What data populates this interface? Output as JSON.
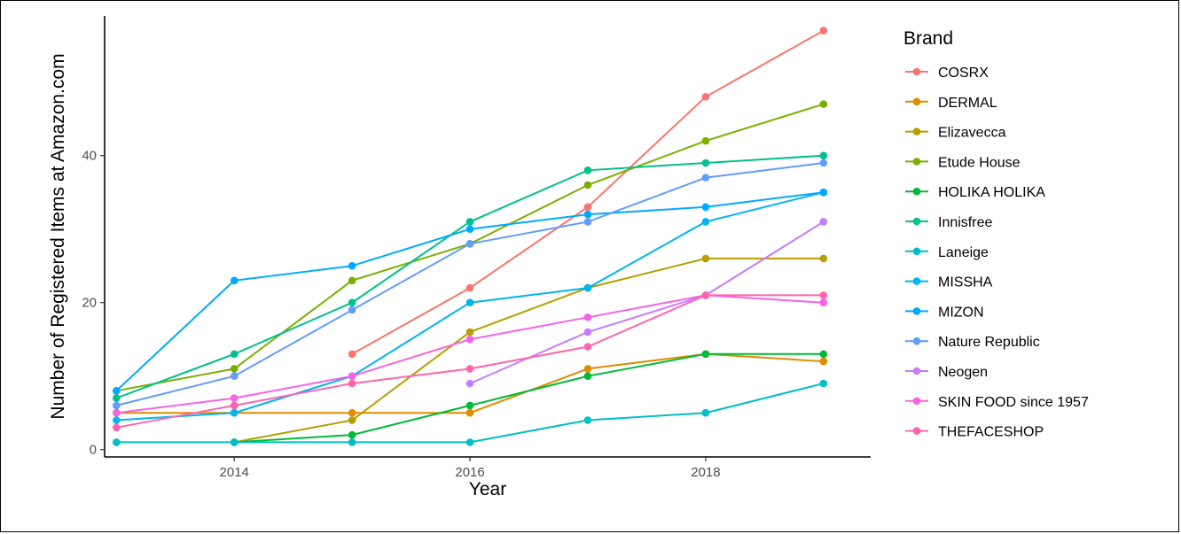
{
  "chart_data": {
    "type": "line",
    "xlabel": "Year",
    "ylabel": "Number of Registered Items at Amazon.com",
    "xlim": [
      2012.9,
      2019.4
    ],
    "ylim": [
      -1,
      59
    ],
    "xticks": [
      2014,
      2016,
      2018
    ],
    "yticks": [
      0,
      20,
      40
    ],
    "grid": false,
    "legend": {
      "title": "Brand",
      "position": "right"
    },
    "series": [
      {
        "name": "COSRX",
        "color": "#F8766D",
        "points": [
          [
            2015,
            13
          ],
          [
            2016,
            22
          ],
          [
            2017,
            33
          ],
          [
            2018,
            48
          ],
          [
            2019,
            57
          ]
        ]
      },
      {
        "name": "DERMAL",
        "color": "#DE8C00",
        "points": [
          [
            2013,
            5
          ],
          [
            2014,
            5
          ],
          [
            2015,
            5
          ],
          [
            2016,
            5
          ],
          [
            2017,
            11
          ],
          [
            2018,
            13
          ],
          [
            2019,
            12
          ]
        ]
      },
      {
        "name": "Elizavecca",
        "color": "#B79F00",
        "points": [
          [
            2014,
            1
          ],
          [
            2015,
            4
          ],
          [
            2016,
            16
          ],
          [
            2017,
            22
          ],
          [
            2018,
            26
          ],
          [
            2019,
            26
          ]
        ]
      },
      {
        "name": "Etude House",
        "color": "#7CAE00",
        "points": [
          [
            2013,
            8
          ],
          [
            2014,
            11
          ],
          [
            2015,
            23
          ],
          [
            2016,
            28
          ],
          [
            2017,
            36
          ],
          [
            2018,
            42
          ],
          [
            2019,
            47
          ]
        ]
      },
      {
        "name": "HOLIKA HOLIKA",
        "color": "#00BA38",
        "points": [
          [
            2014,
            1
          ],
          [
            2015,
            2
          ],
          [
            2016,
            6
          ],
          [
            2017,
            10
          ],
          [
            2018,
            13
          ],
          [
            2019,
            13
          ]
        ]
      },
      {
        "name": "Innisfree",
        "color": "#00C08B",
        "points": [
          [
            2013,
            7
          ],
          [
            2014,
            13
          ],
          [
            2015,
            20
          ],
          [
            2016,
            31
          ],
          [
            2017,
            38
          ],
          [
            2018,
            39
          ],
          [
            2019,
            40
          ]
        ]
      },
      {
        "name": "Laneige",
        "color": "#00BFC4",
        "points": [
          [
            2013,
            1
          ],
          [
            2014,
            1
          ],
          [
            2015,
            1
          ],
          [
            2016,
            1
          ],
          [
            2017,
            4
          ],
          [
            2018,
            5
          ],
          [
            2019,
            9
          ]
        ]
      },
      {
        "name": "MISSHA",
        "color": "#00B4F0",
        "points": [
          [
            2013,
            4
          ],
          [
            2014,
            5
          ],
          [
            2015,
            10
          ],
          [
            2016,
            20
          ],
          [
            2017,
            22
          ],
          [
            2018,
            31
          ],
          [
            2019,
            35
          ]
        ]
      },
      {
        "name": "MIZON",
        "color": "#00A9FF",
        "points": [
          [
            2013,
            8
          ],
          [
            2014,
            23
          ],
          [
            2015,
            25
          ],
          [
            2016,
            30
          ],
          [
            2017,
            32
          ],
          [
            2018,
            33
          ],
          [
            2019,
            35
          ]
        ]
      },
      {
        "name": "Nature Republic",
        "color": "#619CFF",
        "points": [
          [
            2013,
            6
          ],
          [
            2014,
            10
          ],
          [
            2015,
            19
          ],
          [
            2016,
            28
          ],
          [
            2017,
            31
          ],
          [
            2018,
            37
          ],
          [
            2019,
            39
          ]
        ]
      },
      {
        "name": "Neogen",
        "color": "#C77CFF",
        "points": [
          [
            2016,
            9
          ],
          [
            2017,
            16
          ],
          [
            2018,
            21
          ],
          [
            2019,
            31
          ]
        ]
      },
      {
        "name": "SKIN FOOD since 1957",
        "color": "#F564E3",
        "points": [
          [
            2013,
            5
          ],
          [
            2014,
            7
          ],
          [
            2015,
            10
          ],
          [
            2016,
            15
          ],
          [
            2017,
            18
          ],
          [
            2018,
            21
          ],
          [
            2019,
            20
          ]
        ]
      },
      {
        "name": "THEFACESHOP",
        "color": "#FF64B0",
        "points": [
          [
            2013,
            3
          ],
          [
            2014,
            6
          ],
          [
            2015,
            9
          ],
          [
            2016,
            11
          ],
          [
            2017,
            14
          ],
          [
            2018,
            21
          ],
          [
            2019,
            21
          ]
        ]
      }
    ]
  }
}
